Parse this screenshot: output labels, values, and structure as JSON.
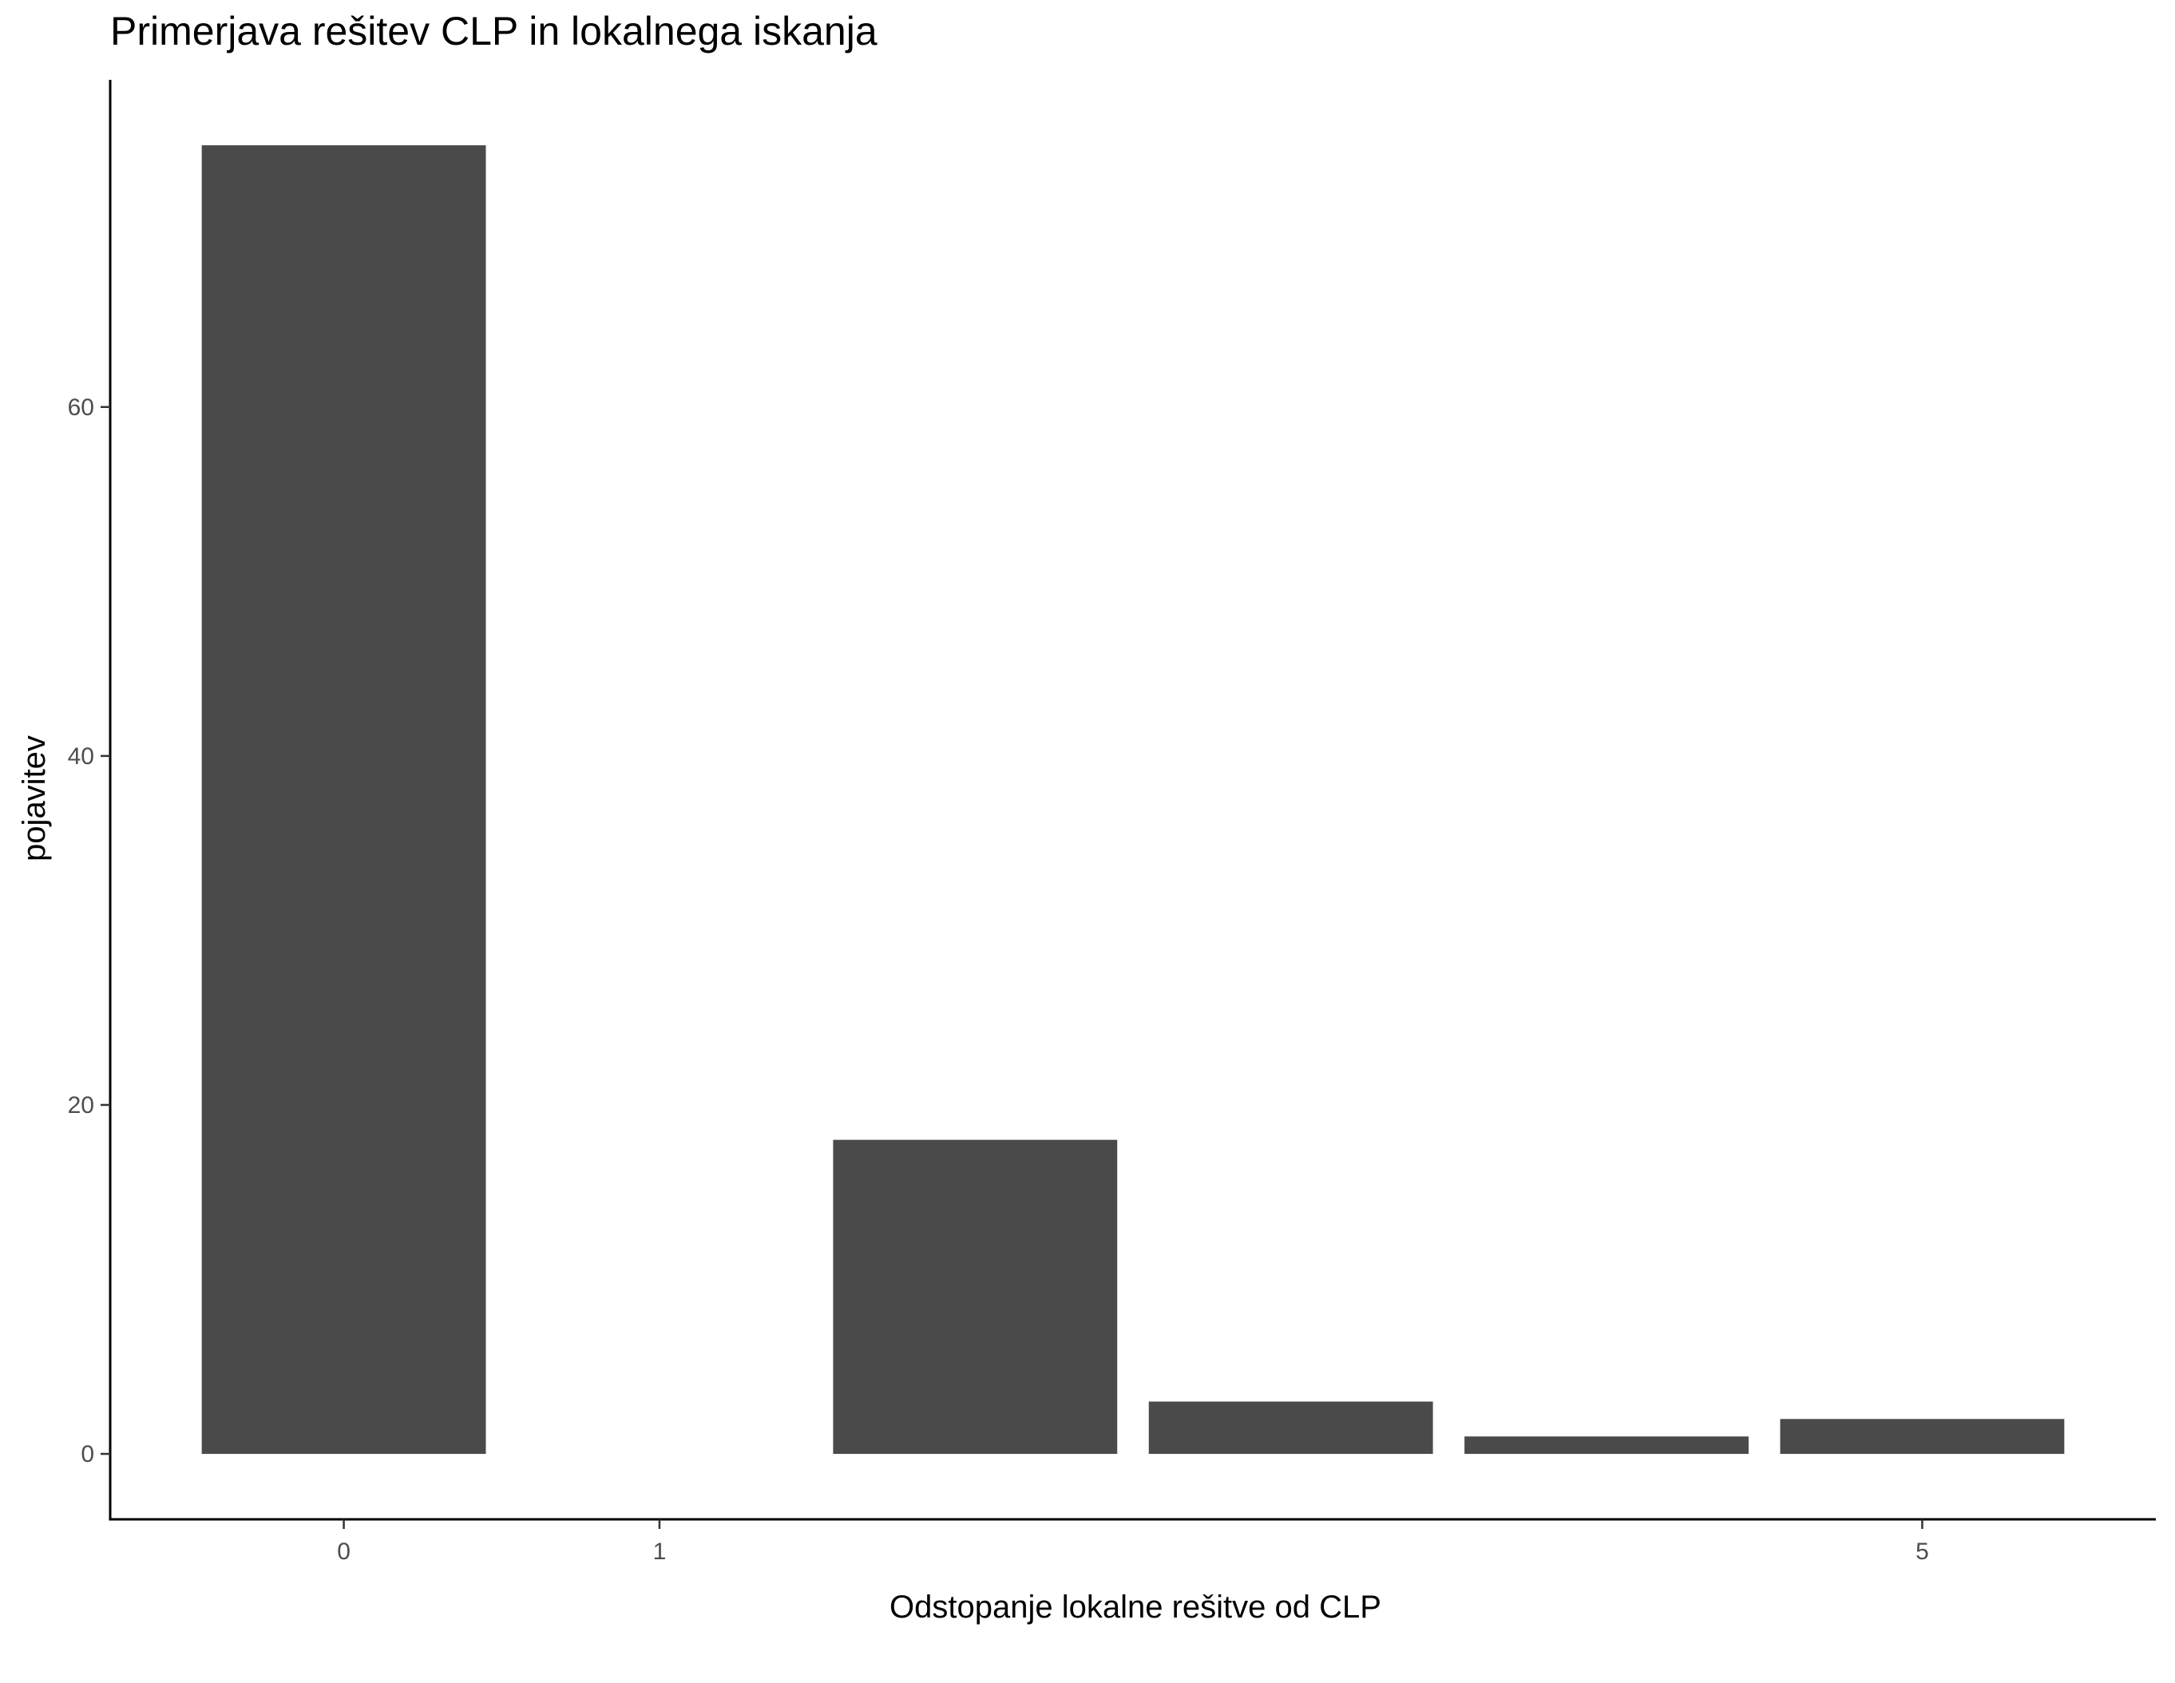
{
  "chart_data": {
    "type": "bar",
    "title": "Primerjava rešitev CLP in lokalnega iskanja",
    "xlabel": "Odstopanje lokalne rešitve od CLP",
    "ylabel": "pojavitev",
    "x": [
      0,
      2,
      3,
      4,
      5
    ],
    "values": [
      75,
      18,
      3,
      1,
      2
    ],
    "xticks": [
      0,
      1,
      5
    ],
    "yticks": [
      0,
      20,
      40,
      60
    ],
    "xlim": [
      -0.74,
      5.74
    ],
    "ylim": [
      -3.75,
      78.75
    ],
    "bar_width": 0.9,
    "bar_color": "#4a4a4a",
    "grid": false,
    "legend": "none"
  }
}
